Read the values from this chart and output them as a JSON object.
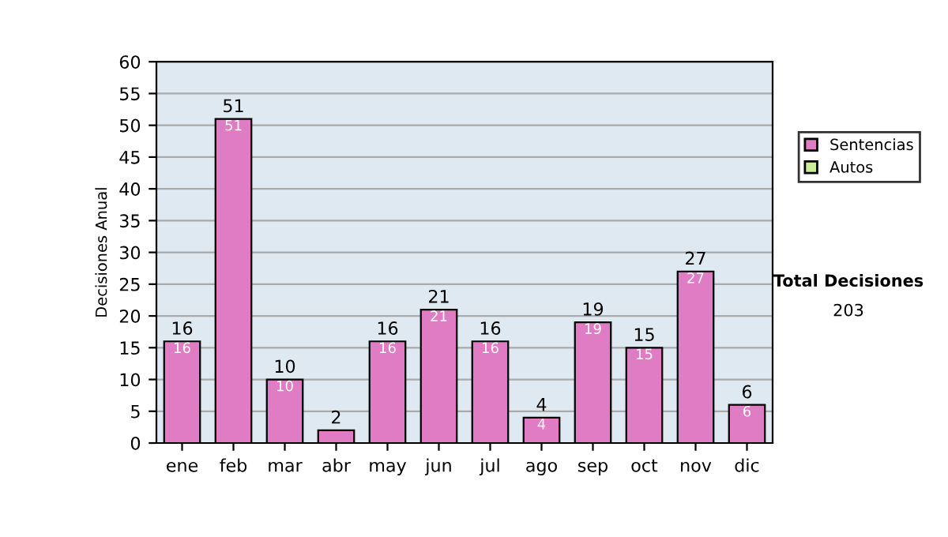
{
  "chart_data": {
    "type": "bar",
    "stacked": true,
    "ylabel": "Decisiones Anual",
    "categories": [
      "ene",
      "feb",
      "mar",
      "abr",
      "may",
      "jun",
      "jul",
      "ago",
      "sep",
      "oct",
      "nov",
      "dic"
    ],
    "series": [
      {
        "name": "Sentencias",
        "color": "#e07cc4",
        "values": [
          16,
          51,
          10,
          2,
          16,
          21,
          16,
          4,
          19,
          15,
          27,
          6
        ],
        "value_labels": [
          "16",
          "51",
          "10",
          null,
          "16",
          "21",
          "16",
          "4",
          "19",
          "15",
          "27",
          "6"
        ]
      },
      {
        "name": "Autos",
        "color": "#ccee99",
        "values": [
          0,
          0,
          0,
          0,
          0,
          0,
          0,
          0,
          0,
          0,
          0,
          0
        ]
      }
    ],
    "totals": [
      "16",
      "51",
      "10",
      "2",
      "16",
      "21",
      "16",
      "4",
      "19",
      "15",
      "27",
      "6"
    ],
    "ylim": [
      0,
      60
    ],
    "yticks": [
      0,
      5,
      10,
      15,
      20,
      25,
      30,
      35,
      40,
      45,
      50,
      55,
      60
    ],
    "grid": "y",
    "legend": "right",
    "annotations": [
      "Total Decisiones",
      "203"
    ]
  }
}
